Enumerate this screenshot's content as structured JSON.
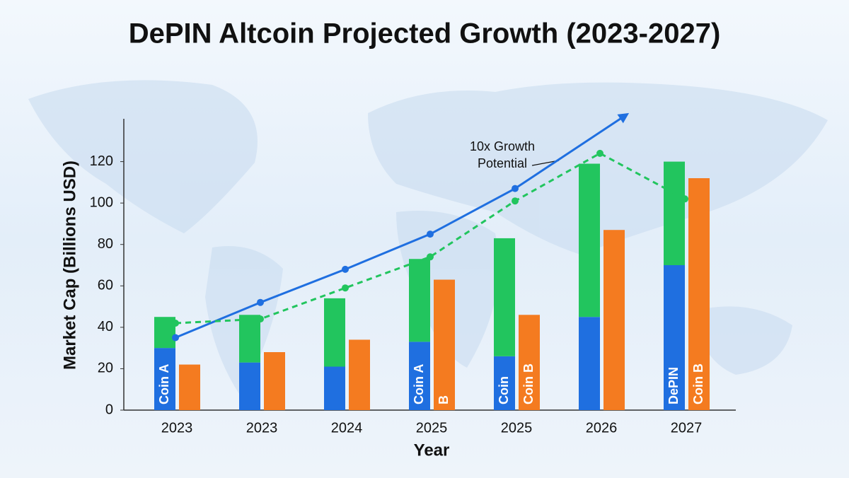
{
  "chart_data": {
    "type": "bar-line",
    "title": "DePIN Altcoin Projected Growth (2023-2027)",
    "y_label": "Market Cap (Billions USD)",
    "x_label": "Year",
    "annotation": "10x Growth Potential",
    "categories": [
      "2023",
      "2023",
      "2024",
      "2025",
      "2025",
      "2026",
      "2027"
    ],
    "ylim": [
      0,
      140
    ],
    "yticks": [
      0,
      20,
      40,
      60,
      80,
      100,
      120
    ],
    "grid": false,
    "series": [
      {
        "type": "bar",
        "slot": 0,
        "color": "#1f6fe0",
        "values": [
          30,
          23,
          21,
          33,
          26,
          45,
          70
        ],
        "labels": [
          "Coin A",
          null,
          null,
          "Coin A",
          "Coin",
          null,
          "DePIN"
        ]
      },
      {
        "type": "bar",
        "slot": 0,
        "color": "#22c55e",
        "values": [
          15,
          23,
          33,
          40,
          57,
          74,
          50
        ],
        "labels": [
          null,
          null,
          null,
          null,
          null,
          null,
          null
        ]
      },
      {
        "type": "bar",
        "slot": 1,
        "color": "#f47b20",
        "values": [
          22,
          28,
          34,
          63,
          46,
          87,
          112
        ],
        "labels": [
          null,
          null,
          null,
          "B",
          "Coin B",
          null,
          "Coin B"
        ]
      },
      {
        "type": "line",
        "color": "#1f6fe0",
        "dashed": false,
        "arrow": true,
        "values": [
          35,
          52,
          68,
          85,
          107,
          null,
          null
        ]
      },
      {
        "type": "line",
        "color": "#22c55e",
        "dashed": true,
        "arrow": false,
        "values": [
          42,
          44,
          59,
          74,
          101,
          124,
          102
        ]
      }
    ]
  }
}
